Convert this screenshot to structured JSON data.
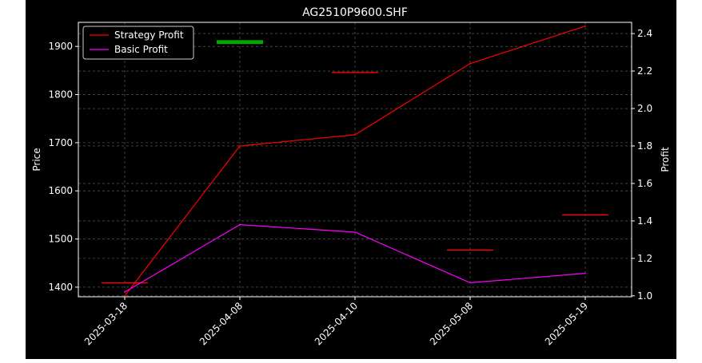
{
  "chart_data": {
    "type": "line",
    "title": "AG2510P9600.SHF",
    "xlabel": "",
    "ylabel_left": "Price",
    "ylabel_right": "Profit",
    "categories": [
      "2025-03-18",
      "2025-04-08",
      "2025-04-10",
      "2025-05-08",
      "2025-05-19"
    ],
    "y_left": {
      "range": [
        1380,
        1950
      ],
      "ticks": [
        1400,
        1500,
        1600,
        1700,
        1800,
        1900
      ]
    },
    "y_right": {
      "range": [
        0.995,
        2.46
      ],
      "ticks": [
        "1.0",
        "1.2",
        "1.4",
        "1.6",
        "1.8",
        "2.0",
        "2.2",
        "2.4"
      ]
    },
    "grid": true,
    "legend": "top-left",
    "series": [
      {
        "name": "Strategy Profit",
        "axis": "right",
        "color": "#ff0000",
        "values": [
          1.0,
          1.8,
          1.86,
          2.24,
          2.44
        ]
      },
      {
        "name": "Basic Profit",
        "axis": "right",
        "color": "#ff00ff",
        "values": [
          1.02,
          1.38,
          1.34,
          1.07,
          1.12
        ]
      }
    ],
    "price_candles": [
      {
        "x": "2025-03-18",
        "open": 1409,
        "close": 1409,
        "color": "#ff0000"
      },
      {
        "x": "2025-04-08",
        "open": 1905,
        "close": 1913,
        "color": "#00aa00"
      },
      {
        "x": "2025-04-10",
        "open": 1846,
        "close": 1846,
        "color": "#ff0000"
      },
      {
        "x": "2025-05-08",
        "open": 1477,
        "close": 1477,
        "color": "#ff0000"
      },
      {
        "x": "2025-05-19",
        "open": 1550,
        "close": 1550,
        "color": "#ff0000"
      }
    ]
  }
}
